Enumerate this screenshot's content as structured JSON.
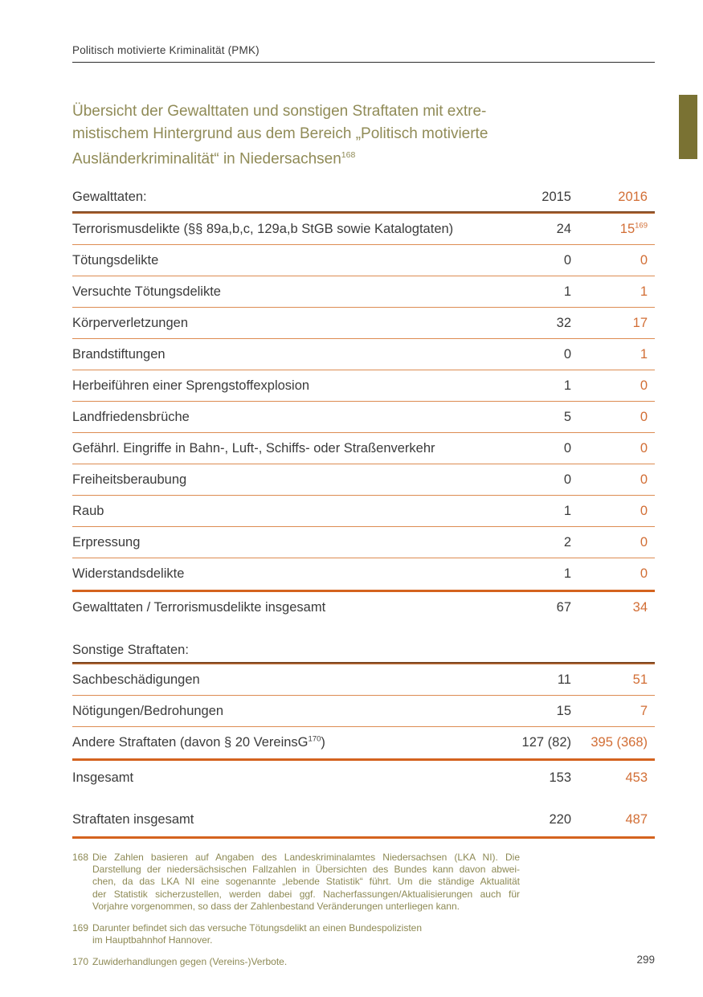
{
  "page": {
    "running_header": "Politisch motivierte Kriminalität (PMK)",
    "page_number": "299"
  },
  "colors": {
    "accent_orange": "#d26e35",
    "rule_orange": "#d4631f",
    "olive": "#8d8954",
    "tab_olive": "#7a7233"
  },
  "title": {
    "line1": "Übersicht der Gewalttaten und sonstigen Straftaten mit extre-",
    "line2": "mistischem Hintergrund aus dem Bereich „Politisch motivierte",
    "line3": "Ausländerkriminalität“ in Niedersachsen",
    "line3_sup": "168"
  },
  "table": {
    "header": {
      "label": "Gewalttaten:",
      "y2015": "2015",
      "y2016": "2016"
    },
    "rows": [
      {
        "label": "Terrorismusdelikte (§§ 89a,b,c, 129a,b StGB sowie Katalogtaten)",
        "v2015": "24",
        "v2016": "15",
        "v2016_sup": "169"
      },
      {
        "label": "Tötungsdelikte",
        "v2015": "0",
        "v2016": "0"
      },
      {
        "label": "Versuchte Tötungsdelikte",
        "v2015": "1",
        "v2016": "1"
      },
      {
        "label": "Körperverletzungen",
        "v2015": "32",
        "v2016": "17"
      },
      {
        "label": "Brandstiftungen",
        "v2015": "0",
        "v2016": "1"
      },
      {
        "label": "Herbeiführen einer Sprengstoffexplosion",
        "v2015": "1",
        "v2016": "0"
      },
      {
        "label": "Landfriedensbrüche",
        "v2015": "5",
        "v2016": "0"
      },
      {
        "label": "Gefährl. Eingriffe in Bahn-, Luft-, Schiffs- oder Straßenverkehr",
        "v2015": "0",
        "v2016": "0"
      },
      {
        "label": "Freiheitsberaubung",
        "v2015": "0",
        "v2016": "0"
      },
      {
        "label": "Raub",
        "v2015": "1",
        "v2016": "0"
      },
      {
        "label": "Erpressung",
        "v2015": "2",
        "v2016": "0"
      },
      {
        "label": "Widerstandsdelikte",
        "v2015": "1",
        "v2016": "0"
      },
      {
        "label": "Gewalttaten / Terrorismusdelikte insgesamt",
        "v2015": "67",
        "v2016": "34"
      }
    ],
    "section2_label": "Sonstige Straftaten:",
    "rows2": [
      {
        "label": "Sachbeschädigungen",
        "v2015": "11",
        "v2016": "51"
      },
      {
        "label": "Nötigungen/Bedrohungen",
        "v2015": "15",
        "v2016": "7"
      },
      {
        "label": "Andere Straftaten (davon § 20 VereinsG",
        "label_sup": "170",
        "label_close": ")",
        "v2015": "127 (82)",
        "v2016": "395 (368)"
      },
      {
        "label": "Insgesamt",
        "v2015": "153",
        "v2016": "453"
      },
      {
        "label": "Straftaten insgesamt",
        "v2015": "220",
        "v2016": "487"
      }
    ]
  },
  "footnotes": [
    {
      "number": "168",
      "lines": [
        "Die Zahlen basieren auf Angaben des Landeskriminalamtes Niedersachsen (LKA NI). Die",
        "Darstellung der niedersächsischen Fallzahlen in Übersichten des Bundes kann davon abwei-",
        "chen, da das LKA NI eine sogenannte „lebende Statistik“ führt. Um die ständige Aktualität",
        "der Statistik sicherzustellen, werden dabei ggf. Nacherfassungen/Aktualisierungen auch für",
        "Vorjahre vorgenommen, so dass der Zahlenbestand Veränderungen unterliegen kann."
      ]
    },
    {
      "number": "169",
      "lines": [
        "Darunter befindet sich das versuche Tötungsdelikt an einen Bundespolizisten",
        "im Hauptbahnhof Hannover."
      ]
    },
    {
      "number": "170",
      "lines": [
        "Zuwiderhandlungen gegen (Vereins-)Verbote."
      ]
    }
  ]
}
